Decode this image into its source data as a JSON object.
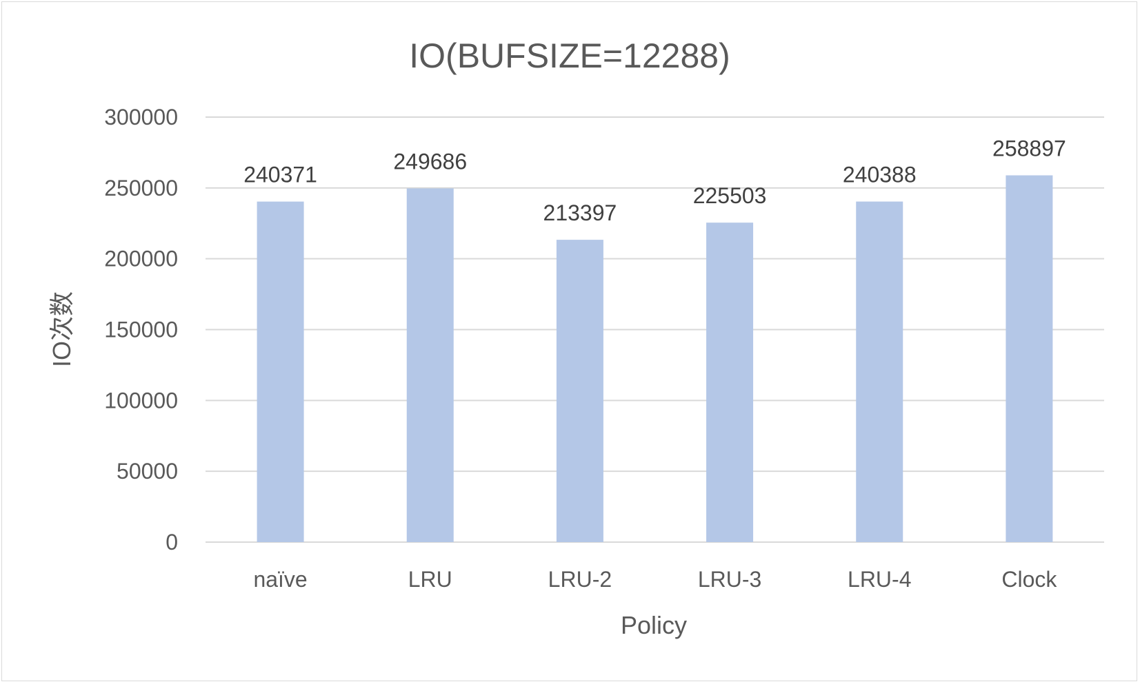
{
  "chart_data": {
    "type": "bar",
    "title": "IO(BUFSIZE=12288)",
    "xlabel": "Policy",
    "ylabel": "IO次数",
    "categories": [
      "naïve",
      "LRU",
      "LRU-2",
      "LRU-3",
      "LRU-4",
      "Clock"
    ],
    "values": [
      240371,
      249686,
      213397,
      225503,
      240388,
      258897
    ],
    "data_labels": [
      "240371",
      "249686",
      "213397",
      "225503",
      "240388",
      "258897"
    ],
    "ylim": [
      0,
      300000
    ],
    "yticks": [
      0,
      50000,
      100000,
      150000,
      200000,
      250000,
      300000
    ],
    "ytick_labels": [
      "0",
      "50000",
      "100000",
      "150000",
      "200000",
      "250000",
      "300000"
    ],
    "grid": true,
    "legend": "none",
    "bar_color": "#b4c7e7"
  }
}
